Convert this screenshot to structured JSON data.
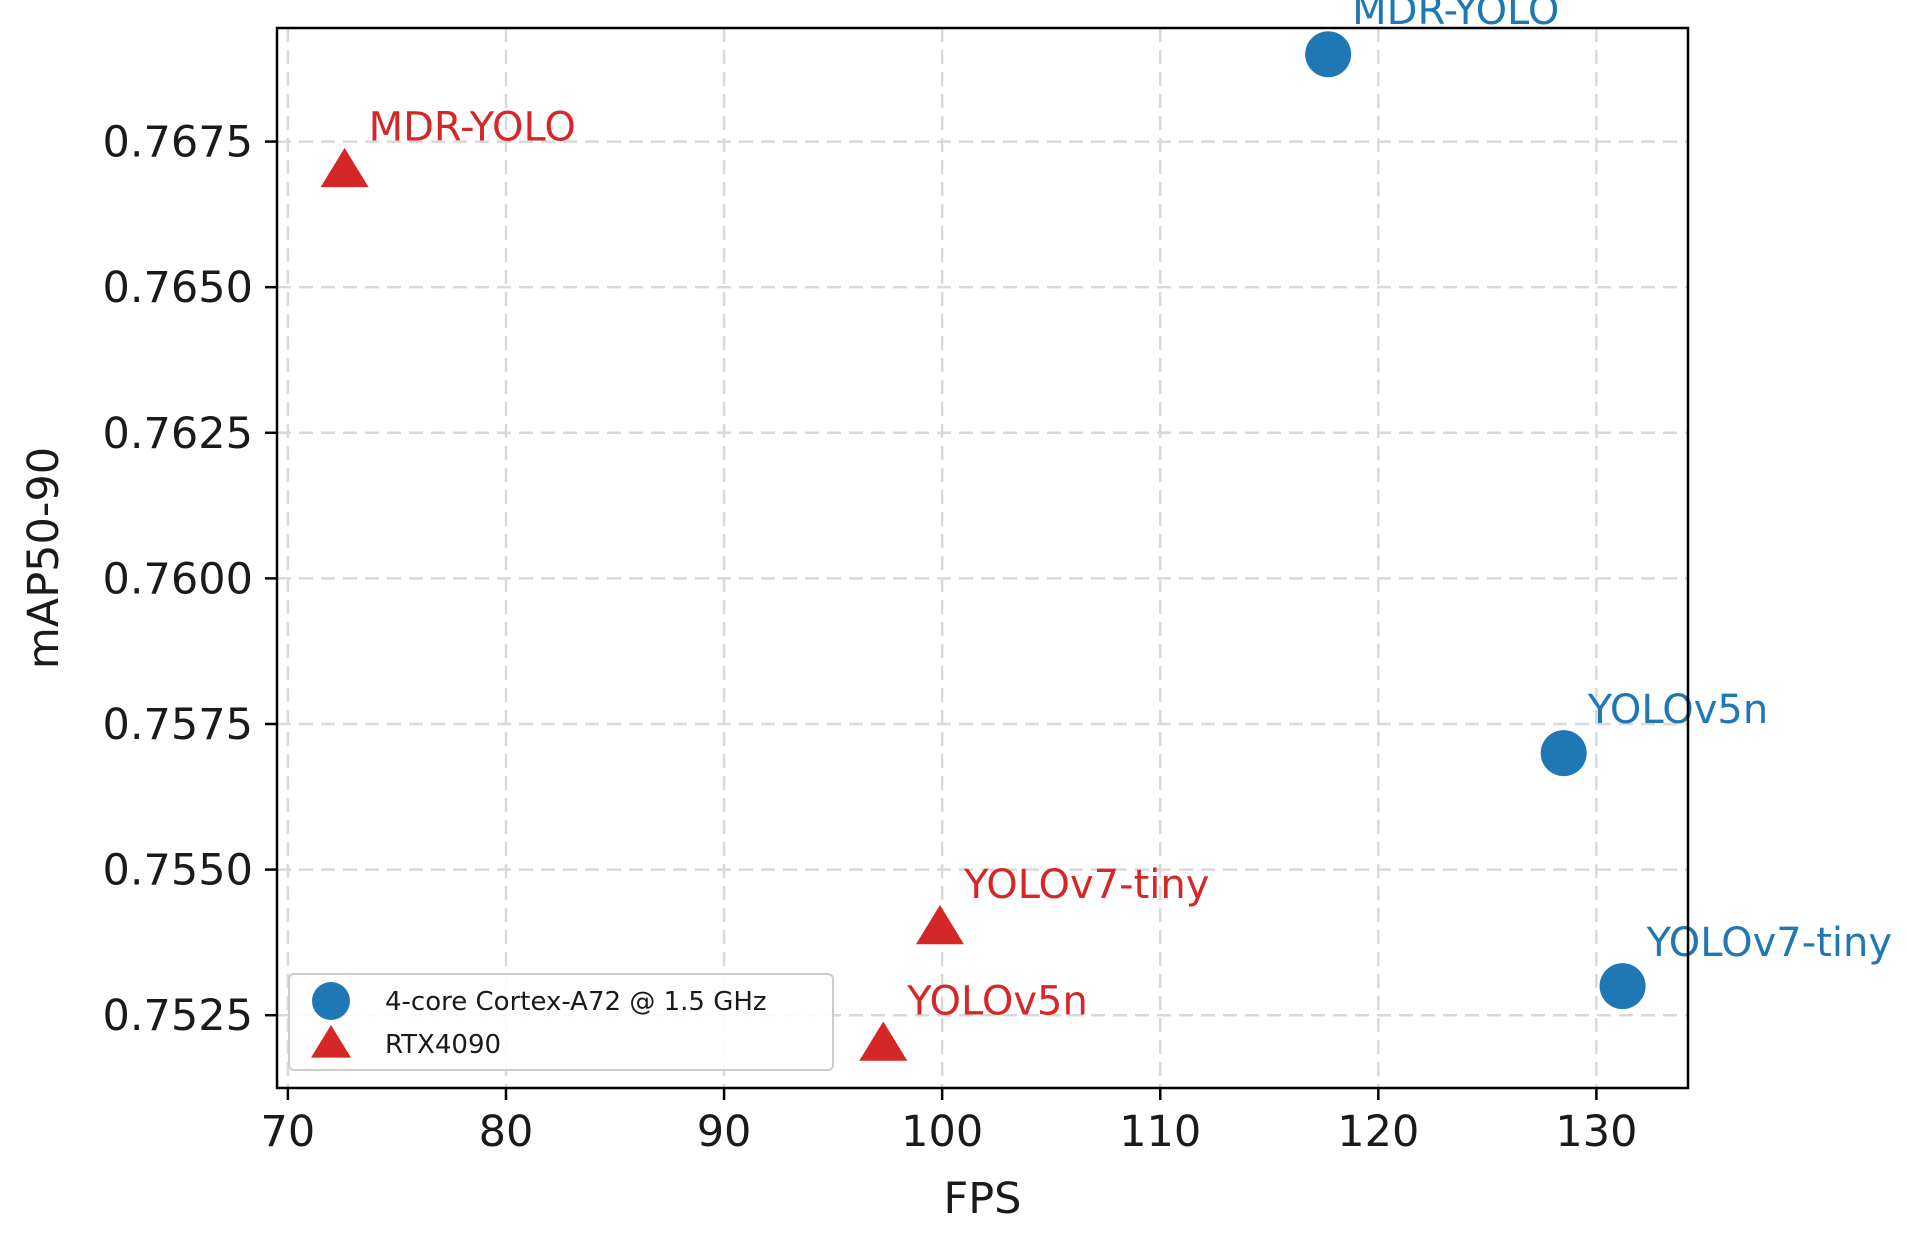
{
  "chart_data": {
    "type": "scatter",
    "title": "",
    "xlabel": "FPS",
    "ylabel": "mAP50-90",
    "xlim": [
      69.5,
      134.2
    ],
    "ylim": [
      0.75125,
      0.76945
    ],
    "xticks": [
      70,
      80,
      90,
      100,
      110,
      120,
      130
    ],
    "xtick_labels": [
      "70",
      "80",
      "90",
      "100",
      "110",
      "120",
      "130"
    ],
    "yticks": [
      0.7525,
      0.755,
      0.7575,
      0.76,
      0.7625,
      0.765,
      0.7675
    ],
    "ytick_labels": [
      "0.7525",
      "0.7550",
      "0.7575",
      "0.7600",
      "0.7625",
      "0.7650",
      "0.7675"
    ],
    "grid": true,
    "legend_position": "lower-left",
    "series": [
      {
        "name": "4-core Cortex-A72 @ 1.5 GHz",
        "marker": "circle",
        "color": "#1f77b4",
        "points": [
          {
            "label": "MDR-YOLO",
            "x": 117.7,
            "y": 0.769
          },
          {
            "label": "YOLOv5n",
            "x": 128.5,
            "y": 0.757
          },
          {
            "label": "YOLOv7-tiny",
            "x": 131.2,
            "y": 0.753
          }
        ]
      },
      {
        "name": "RTX4090",
        "marker": "triangle",
        "color": "#d62728",
        "points": [
          {
            "label": "MDR-YOLO",
            "x": 72.6,
            "y": 0.767
          },
          {
            "label": "YOLOv7-tiny",
            "x": 99.9,
            "y": 0.754
          },
          {
            "label": "YOLOv5n",
            "x": 97.3,
            "y": 0.752
          }
        ]
      }
    ]
  }
}
